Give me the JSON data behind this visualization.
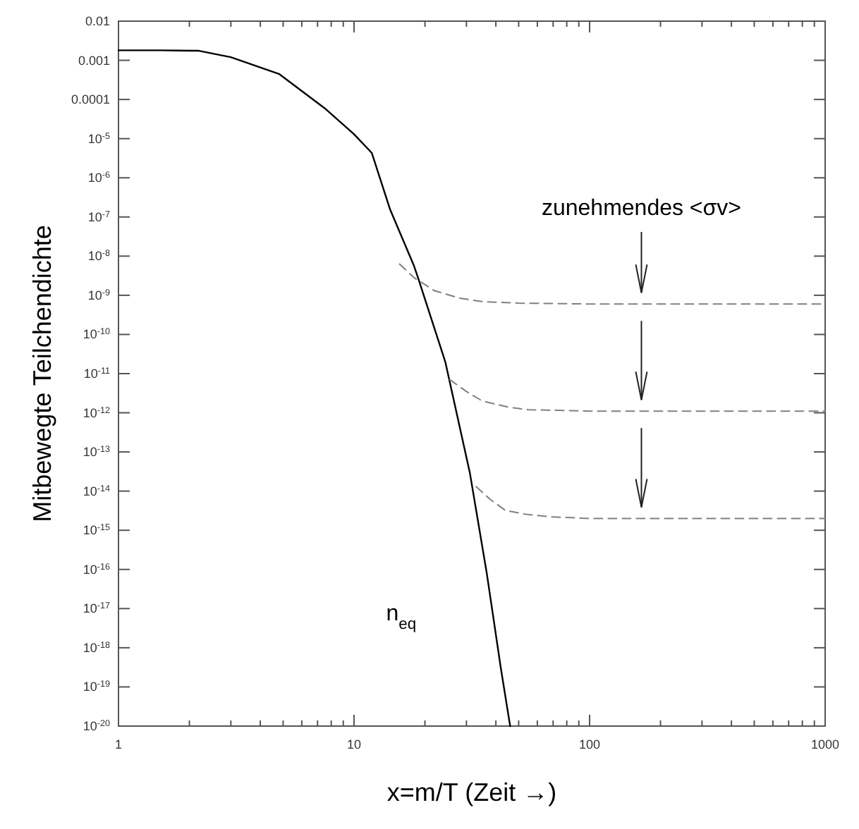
{
  "chart_data": {
    "type": "line",
    "xlabel": "x=m/T (Zeit →)",
    "ylabel": "Mitbewegte Teilchendichte",
    "log": "xy",
    "grid": false,
    "xlim": [
      1,
      1000
    ],
    "ylim": [
      1e-20,
      0.01
    ],
    "xticks": [
      1,
      {
        "value": 2,
        "label": null
      },
      {
        "value": 3,
        "label": null
      },
      {
        "value": 4,
        "label": null
      },
      {
        "value": 5,
        "label": null
      },
      {
        "value": 6,
        "label": null
      },
      {
        "value": 7,
        "label": null
      },
      {
        "value": 8,
        "label": null
      },
      {
        "value": 9,
        "label": null
      },
      10,
      {
        "value": 20,
        "label": null
      },
      {
        "value": 30,
        "label": null
      },
      {
        "value": 40,
        "label": null
      },
      {
        "value": 50,
        "label": null
      },
      {
        "value": 60,
        "label": null
      },
      {
        "value": 70,
        "label": null
      },
      {
        "value": 80,
        "label": null
      },
      {
        "value": 90,
        "label": null
      },
      100,
      {
        "value": 200,
        "label": null
      },
      {
        "value": 300,
        "label": null
      },
      {
        "value": 400,
        "label": null
      },
      {
        "value": 500,
        "label": null
      },
      {
        "value": 600,
        "label": null
      },
      {
        "value": 700,
        "label": null
      },
      {
        "value": 800,
        "label": null
      },
      {
        "value": 900,
        "label": null
      },
      1000
    ],
    "yticks": [
      0.01,
      0.001,
      0.0001,
      {
        "value": 1e-05,
        "label": "10$^{-5}$"
      },
      {
        "value": 1e-06,
        "label": "10$^{-6}$"
      },
      {
        "value": 1e-07,
        "label": "10$^{-7}$"
      },
      {
        "value": 1e-08,
        "label": "10$^{-8}$"
      },
      {
        "value": 1e-09,
        "label": "10$^{-9}$"
      },
      {
        "value": 1e-10,
        "label": "10$^{-10}$"
      },
      {
        "value": 1e-11,
        "label": "10$^{-11}$"
      },
      {
        "value": 1e-12,
        "label": "10$^{-12}$"
      },
      {
        "value": 1e-13,
        "label": "10$^{-13}$"
      },
      {
        "value": 1e-14,
        "label": "10$^{-14}$"
      },
      {
        "value": 1e-15,
        "label": "10$^{-15}$"
      },
      {
        "value": 1e-16,
        "label": "10$^{-16}$"
      },
      {
        "value": 1e-17,
        "label": "10$^{-17}$"
      },
      {
        "value": 1e-18,
        "label": "10$^{-18}$"
      },
      {
        "value": 1e-19,
        "label": "10$^{-19}$"
      },
      {
        "value": 1e-20,
        "label": "10$^{-20}$"
      }
    ],
    "series": [
      {
        "color": "#000000",
        "line_style": "solid",
        "x": [
          1,
          1.5,
          2.2,
          3,
          4.8,
          7.5,
          10,
          11.9,
          14.2,
          17.9,
          18.7,
          24.4,
          31,
          36.6,
          42,
          46
        ],
        "values": [
          0.0018,
          0.0018,
          0.00175,
          0.0012,
          0.00045,
          6e-05,
          1.3e-05,
          4.3e-06,
          1.6e-07,
          6e-09,
          2.8e-09,
          2e-11,
          3e-14,
          8e-17,
          3e-19,
          1e-20
        ]
      },
      {
        "color": "#808080",
        "line_style": "dashed",
        "x": [
          15.6,
          18,
          22,
          28,
          35,
          50,
          100,
          200,
          500,
          1000
        ],
        "values": [
          6.3e-09,
          2.8e-09,
          1.3e-09,
          8.5e-10,
          6.9e-10,
          6.3e-10,
          6e-10,
          6e-10,
          6e-10,
          6e-10
        ]
      },
      {
        "color": "#808080",
        "line_style": "dashed",
        "x": [
          25.5,
          30,
          35,
          45,
          55,
          100,
          1000
        ],
        "values": [
          7e-12,
          3.5e-12,
          2e-12,
          1.4e-12,
          1.2e-12,
          1.1e-12,
          1.1e-12
        ]
      },
      {
        "color": "#808080",
        "line_style": "dashed",
        "x": [
          33,
          38,
          44,
          55,
          69,
          100,
          1000
        ],
        "values": [
          1.3e-14,
          6e-15,
          3.2e-15,
          2.5e-15,
          2.2e-15,
          2e-15,
          2e-15
        ]
      }
    ],
    "annotations": [
      "zunehmendes <σv>",
      "n$_{eq}$"
    ]
  }
}
